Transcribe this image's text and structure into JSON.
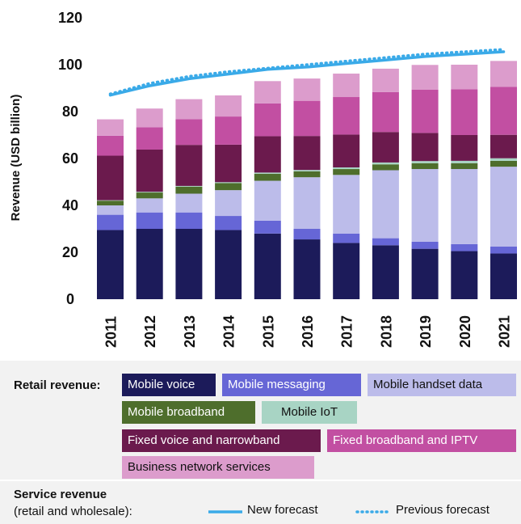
{
  "chart_data": {
    "type": "bar",
    "stacked": true,
    "categories": [
      "2011",
      "2012",
      "2013",
      "2014",
      "2015",
      "2016",
      "2017",
      "2018",
      "2019",
      "2020",
      "2021"
    ],
    "ylabel": "Revenue (USD billion)",
    "ylim": [
      0,
      120
    ],
    "yticks": [
      0,
      20,
      40,
      60,
      80,
      100,
      120
    ],
    "grid": false,
    "series": [
      {
        "name": "Mobile voice",
        "color": "#1c1b5a",
        "values": [
          29.5,
          30,
          30,
          29.5,
          28,
          25.5,
          24,
          23,
          21.5,
          20.5,
          19.5
        ]
      },
      {
        "name": "Mobile messaging",
        "color": "#6666d6",
        "values": [
          6.5,
          7,
          7,
          6,
          5.5,
          4.5,
          4,
          3,
          3,
          3,
          3
        ]
      },
      {
        "name": "Mobile handset data",
        "color": "#bcbcea",
        "values": [
          4,
          6,
          8,
          11,
          17,
          22,
          25,
          29,
          31,
          32,
          34
        ]
      },
      {
        "name": "Mobile broadband",
        "color": "#4e6e2c",
        "values": [
          2,
          2.5,
          3,
          3,
          3,
          2.5,
          2.5,
          2.5,
          2.5,
          2.5,
          2.5
        ]
      },
      {
        "name": "Mobile IoT",
        "color": "#a8d4c4",
        "values": [
          0.2,
          0.3,
          0.3,
          0.4,
          0.5,
          0.6,
          0.7,
          0.8,
          0.9,
          1,
          1.1
        ]
      },
      {
        "name": "Fixed voice and narrowband",
        "color": "#6b1a4d",
        "values": [
          19,
          18,
          17.5,
          16,
          15.5,
          14.5,
          14,
          13,
          12,
          11,
          10
        ]
      },
      {
        "name": "Fixed broadband and IPTV",
        "color": "#c24fa2",
        "values": [
          8.5,
          9.5,
          11,
          12,
          14,
          15,
          16,
          17,
          18.5,
          19.5,
          20.5
        ]
      },
      {
        "name": "Business network services",
        "color": "#dc9ccc",
        "values": [
          7,
          8,
          8.5,
          9,
          9.5,
          9.5,
          10,
          10,
          10.5,
          10.5,
          11
        ]
      }
    ],
    "lines": [
      {
        "name": "New forecast",
        "style": "solid",
        "color": "#3aaae8",
        "values": [
          87,
          91,
          94,
          96,
          98,
          99,
          100.5,
          102,
          103.5,
          104.5,
          105.5
        ]
      },
      {
        "name": "Previous forecast",
        "style": "dotted",
        "color": "#3aaae8",
        "values": [
          87.5,
          92,
          95,
          97,
          98.5,
          100,
          101.5,
          103,
          104.5,
          105.5,
          106.5
        ]
      }
    ]
  },
  "legend": {
    "retail_title": "Retail revenue:",
    "service_title": "Service revenue",
    "service_sub": "(retail and wholesale):",
    "chips": [
      {
        "label": "Mobile voice",
        "bg": "#1c1b5a",
        "fg": "#ffffff"
      },
      {
        "label": "Mobile messaging",
        "bg": "#6666d6",
        "fg": "#ffffff"
      },
      {
        "label": "Mobile handset data",
        "bg": "#bcbcea",
        "fg": "#111111"
      },
      {
        "label": "Mobile broadband",
        "bg": "#4e6e2c",
        "fg": "#ffffff"
      },
      {
        "label": "Mobile IoT",
        "bg": "#a8d4c4",
        "fg": "#111111"
      },
      {
        "label": "Fixed voice and narrowband",
        "bg": "#6b1a4d",
        "fg": "#ffffff"
      },
      {
        "label": "Fixed broadband and IPTV",
        "bg": "#c24fa2",
        "fg": "#ffffff"
      },
      {
        "label": "Business network services",
        "bg": "#dc9ccc",
        "fg": "#111111"
      }
    ],
    "new_forecast": "New forecast",
    "previous_forecast": "Previous forecast"
  }
}
